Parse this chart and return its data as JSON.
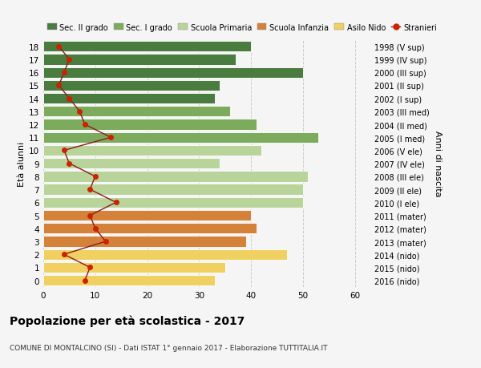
{
  "ages": [
    18,
    17,
    16,
    15,
    14,
    13,
    12,
    11,
    10,
    9,
    8,
    7,
    6,
    5,
    4,
    3,
    2,
    1,
    0
  ],
  "bar_values": [
    40,
    37,
    50,
    34,
    33,
    36,
    41,
    53,
    42,
    34,
    51,
    50,
    50,
    40,
    41,
    39,
    47,
    35,
    33
  ],
  "stranieri_values": [
    3,
    5,
    4,
    3,
    5,
    7,
    8,
    13,
    4,
    5,
    10,
    9,
    14,
    9,
    10,
    12,
    4,
    9,
    8
  ],
  "right_labels": [
    "1998 (V sup)",
    "1999 (IV sup)",
    "2000 (III sup)",
    "2001 (II sup)",
    "2002 (I sup)",
    "2003 (III med)",
    "2004 (II med)",
    "2005 (I med)",
    "2006 (V ele)",
    "2007 (IV ele)",
    "2008 (III ele)",
    "2009 (II ele)",
    "2010 (I ele)",
    "2011 (mater)",
    "2012 (mater)",
    "2013 (mater)",
    "2014 (nido)",
    "2015 (nido)",
    "2016 (nido)"
  ],
  "bar_colors": [
    "#4a7c3f",
    "#4a7c3f",
    "#4a7c3f",
    "#4a7c3f",
    "#4a7c3f",
    "#7dab5e",
    "#7dab5e",
    "#7dab5e",
    "#b8d49a",
    "#b8d49a",
    "#b8d49a",
    "#b8d49a",
    "#b8d49a",
    "#d4813a",
    "#d4813a",
    "#d4813a",
    "#f0d060",
    "#f0d060",
    "#f0d060"
  ],
  "stranieri_color": "#8b1a1a",
  "stranieri_marker_color": "#cc2200",
  "legend_labels": [
    "Sec. II grado",
    "Sec. I grado",
    "Scuola Primaria",
    "Scuola Infanzia",
    "Asilo Nido",
    "Stranieri"
  ],
  "legend_colors": [
    "#4a7c3f",
    "#7dab5e",
    "#b8d49a",
    "#d4813a",
    "#f0d060",
    "#cc2200"
  ],
  "ylabel_left": "Età alunni",
  "ylabel_right": "Anni di nascita",
  "title": "Popolazione per età scolastica - 2017",
  "subtitle": "COMUNE DI MONTALCINO (SI) - Dati ISTAT 1° gennaio 2017 - Elaborazione TUTTITALIA.IT",
  "xlim": [
    0,
    63
  ],
  "xticks": [
    0,
    10,
    20,
    30,
    40,
    50,
    60
  ],
  "bar_height": 0.82,
  "background_color": "#f5f5f5",
  "grid_color": "#cccccc"
}
